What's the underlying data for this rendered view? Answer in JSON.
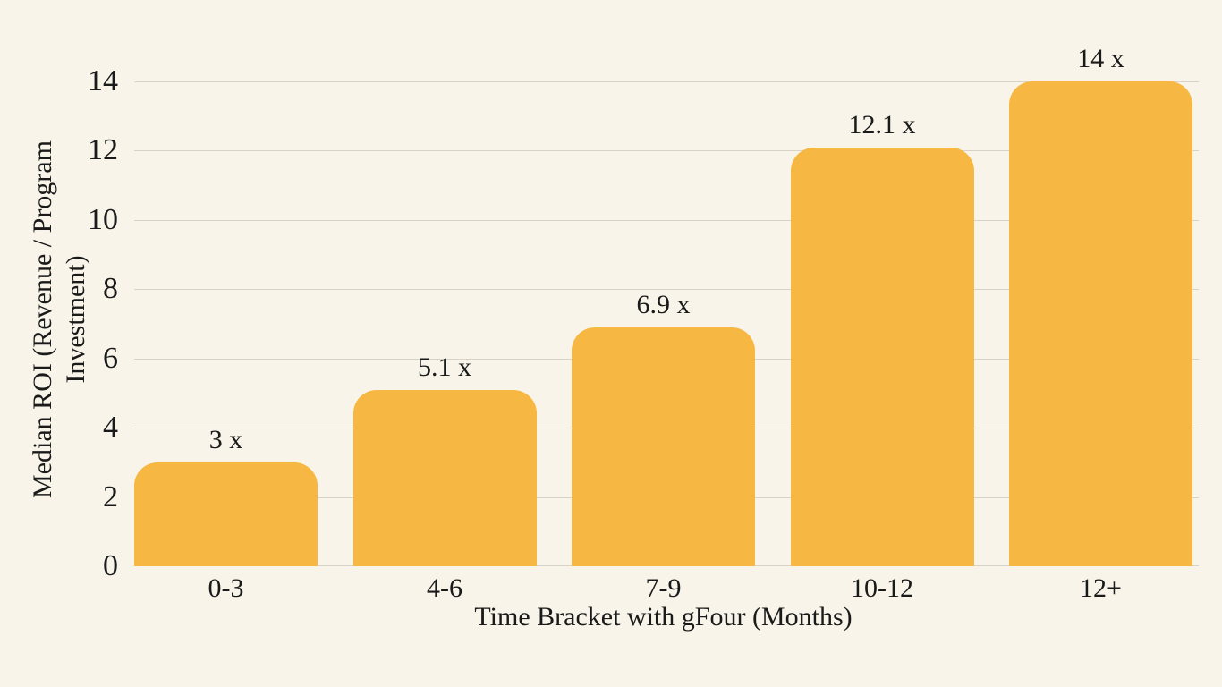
{
  "chart_data": {
    "type": "bar",
    "title": "",
    "categories": [
      "0-3",
      "4-6",
      "7-9",
      "10-12",
      "12+"
    ],
    "values": [
      3,
      5.1,
      6.9,
      12.1,
      14
    ],
    "bar_labels": [
      "3 x",
      "5.1 x",
      "6.9 x",
      "12.1 x",
      "14 x"
    ],
    "xlabel": "Time Bracket with gFour (Months)",
    "ylabel": "Median ROI (Revenue / Program Investment)",
    "ylabel_lines": [
      "Median ROI (Revenue / Program",
      "Investment)"
    ],
    "ylim": [
      0,
      14
    ],
    "yticks": [
      0,
      2,
      4,
      6,
      8,
      10,
      12,
      14
    ],
    "grid": "horizontal",
    "legend": "none",
    "colors": {
      "background": "#F8F4E9",
      "bar": "#F6B842",
      "gridline": "#D8D3C7",
      "text": "#1A1A1A"
    }
  }
}
